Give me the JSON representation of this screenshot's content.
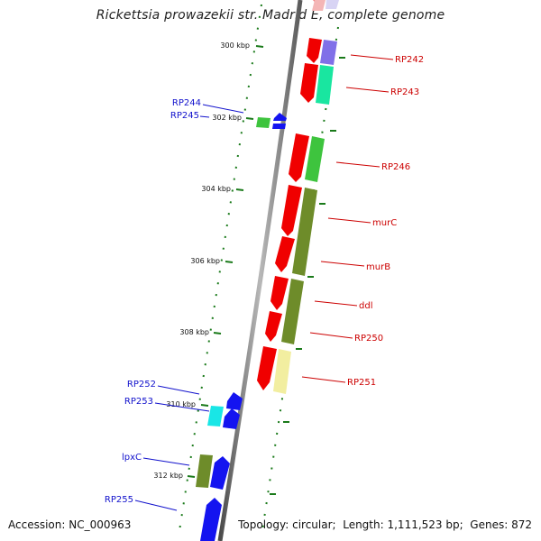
{
  "title": "Rickettsia prowazekii str. Madrid E, complete genome",
  "footer": {
    "accession_label": "Accession:",
    "accession": "NC_000963",
    "topology_label": "Topology:",
    "topology": "circular",
    "length_label": "Length:",
    "length": "1,111,523 bp",
    "genes_label": "Genes:",
    "genes": "872"
  },
  "scale_ticks": [
    "300 kbp",
    "302 kbp",
    "304 kbp",
    "306 kbp",
    "308 kbp",
    "310 kbp",
    "312 kbp"
  ],
  "gene_labels_forward": [
    "RP244",
    "RP245",
    "RP252",
    "RP253",
    "lpxC",
    "RP255"
  ],
  "gene_labels_reverse": [
    "RP242",
    "RP243",
    "RP246",
    "murC",
    "murB",
    "ddl",
    "RP250",
    "RP251"
  ],
  "colors": {
    "backbone": "#7a7a7a",
    "forward_gene": "#1414f0",
    "reverse_gene": "#f00000",
    "forward_label": "#1111cc",
    "reverse_label": "#cc0000",
    "tick": "#1a7a1a",
    "cog_green": "#3ec43e",
    "cog_olive": "#6e8c2a",
    "cog_cyan": "#19e6e6",
    "cog_teal": "#19e6a0",
    "cog_violet": "#8070e8",
    "cog_yellow": "#f2eea0",
    "cog_pale_violet": "#d8d4f4",
    "cog_pink": "#f4b6b6"
  }
}
